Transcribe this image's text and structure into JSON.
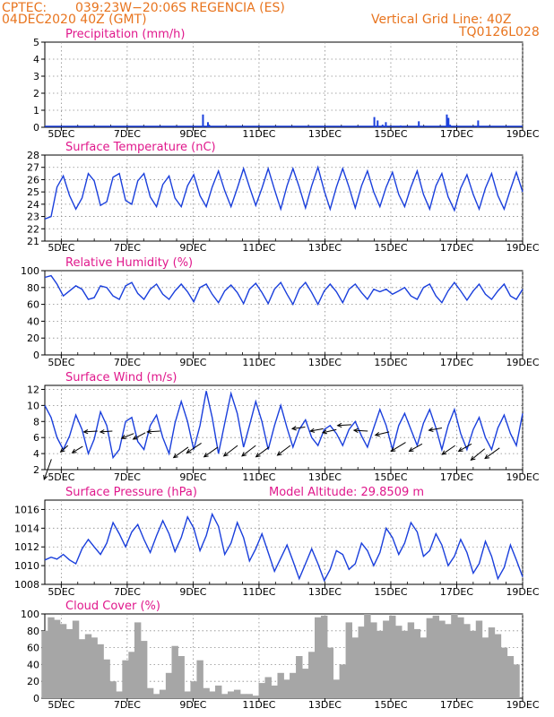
{
  "header": {
    "source": "CPTEC:",
    "location": "039:23W−20:06S   REGENCIA (ES)",
    "datetime": "04DEC2020 40Z (GMT)",
    "grid_note": "Vertical Grid Line: 40Z",
    "code": "TQ0126L028"
  },
  "colors": {
    "header": "#e8741e",
    "title": "#e0188c",
    "line": "#1a3fdc",
    "cloud": "#a6a6a6",
    "arrow": "#000000"
  },
  "x_ticks": [
    "5DEC",
    "7DEC",
    "9DEC",
    "11DEC",
    "13DEC",
    "15DEC",
    "17DEC",
    "19DEC"
  ],
  "chart_data": [
    {
      "type": "bar",
      "title": "Precipitation (mm/h)",
      "ylim": [
        0,
        5
      ],
      "y_ticks": [
        "0",
        "1",
        "2",
        "3",
        "4",
        "5"
      ],
      "x_unit": "days since 4DEC 00Z",
      "points": [
        [
          9.3,
          0.75
        ],
        [
          9.45,
          0.3
        ],
        [
          9.5,
          0.1
        ],
        [
          14.5,
          0.6
        ],
        [
          14.6,
          0.4
        ],
        [
          14.75,
          0.15
        ],
        [
          14.85,
          0.3
        ],
        [
          15.3,
          0.1
        ],
        [
          15.85,
          0.35
        ],
        [
          16.7,
          0.75
        ],
        [
          16.75,
          0.55
        ],
        [
          16.8,
          0.15
        ],
        [
          17.65,
          0.4
        ]
      ]
    },
    {
      "type": "line",
      "title": "Surface Temperature (nC)",
      "ylim": [
        21,
        28
      ],
      "y_ticks": [
        "21",
        "22",
        "23",
        "24",
        "25",
        "26",
        "27",
        "28"
      ],
      "x": [
        4.5,
        4.69,
        4.87,
        5.06,
        5.25,
        5.44,
        5.63,
        5.82,
        6.0,
        6.19,
        6.38,
        6.57,
        6.76,
        6.95,
        7.14,
        7.32,
        7.51,
        7.7,
        7.89,
        8.08,
        8.27,
        8.45,
        8.64,
        8.83,
        9.02,
        9.21,
        9.4,
        9.58,
        9.77,
        9.96,
        10.15,
        10.34,
        10.53,
        10.71,
        10.9,
        11.09,
        11.28,
        11.47,
        11.66,
        11.85,
        12.03,
        12.22,
        12.41,
        12.6,
        12.79,
        12.98,
        13.16,
        13.35,
        13.54,
        13.73,
        13.92,
        14.11,
        14.29,
        14.48,
        14.67,
        14.86,
        15.05,
        15.24,
        15.42,
        15.61,
        15.8,
        15.99,
        16.18,
        16.37,
        16.55,
        16.74,
        16.93,
        17.12,
        17.31,
        17.5,
        17.68,
        17.87,
        18.06,
        18.25,
        18.44,
        18.63,
        18.81,
        19.0
      ],
      "y": [
        22.8,
        23.0,
        25.4,
        26.3,
        24.7,
        23.6,
        24.5,
        26.5,
        25.9,
        23.9,
        24.2,
        26.2,
        26.5,
        24.3,
        24.0,
        25.9,
        26.5,
        24.6,
        23.8,
        25.6,
        26.3,
        24.5,
        23.8,
        25.5,
        26.4,
        24.7,
        23.8,
        25.4,
        26.7,
        25.1,
        23.8,
        25.3,
        26.9,
        25.4,
        23.9,
        25.3,
        26.9,
        25.2,
        23.6,
        25.5,
        26.9,
        25.4,
        23.7,
        25.5,
        27.0,
        25.1,
        23.6,
        25.4,
        26.9,
        25.4,
        23.7,
        25.5,
        26.7,
        25.0,
        23.8,
        25.4,
        26.6,
        24.8,
        23.8,
        25.4,
        26.7,
        24.8,
        23.6,
        25.5,
        26.5,
        24.6,
        23.5,
        25.3,
        26.4,
        24.8,
        23.6,
        25.3,
        26.5,
        24.7,
        23.6,
        25.2,
        26.6,
        25.0
      ]
    },
    {
      "type": "line",
      "title": "Relative Humidity (%)",
      "ylim": [
        0,
        100
      ],
      "y_ticks": [
        "0",
        "20",
        "40",
        "60",
        "80",
        "100"
      ],
      "x": [
        4.5,
        4.69,
        4.87,
        5.06,
        5.25,
        5.44,
        5.63,
        5.82,
        6.0,
        6.19,
        6.38,
        6.57,
        6.76,
        6.95,
        7.14,
        7.32,
        7.51,
        7.7,
        7.89,
        8.08,
        8.27,
        8.45,
        8.64,
        8.83,
        9.02,
        9.21,
        9.4,
        9.58,
        9.77,
        9.96,
        10.15,
        10.34,
        10.53,
        10.71,
        10.9,
        11.09,
        11.28,
        11.47,
        11.66,
        11.85,
        12.03,
        12.22,
        12.41,
        12.6,
        12.79,
        12.98,
        13.16,
        13.35,
        13.54,
        13.73,
        13.92,
        14.11,
        14.29,
        14.48,
        14.67,
        14.86,
        15.05,
        15.24,
        15.42,
        15.61,
        15.8,
        15.99,
        16.18,
        16.37,
        16.55,
        16.74,
        16.93,
        17.12,
        17.31,
        17.5,
        17.68,
        17.87,
        18.06,
        18.25,
        18.44,
        18.63,
        18.81,
        19.0
      ],
      "y": [
        92,
        94,
        84,
        70,
        76,
        82,
        78,
        66,
        68,
        82,
        80,
        70,
        66,
        82,
        86,
        73,
        66,
        78,
        84,
        72,
        66,
        76,
        84,
        75,
        63,
        80,
        84,
        72,
        62,
        76,
        83,
        74,
        61,
        78,
        85,
        74,
        61,
        78,
        86,
        72,
        60,
        78,
        86,
        74,
        60,
        76,
        84,
        75,
        62,
        78,
        84,
        74,
        66,
        78,
        75,
        78,
        72,
        76,
        80,
        70,
        66,
        80,
        84,
        70,
        62,
        76,
        86,
        76,
        65,
        76,
        84,
        72,
        66,
        76,
        84,
        70,
        66,
        78
      ]
    },
    {
      "type": "line",
      "title": "Surface Wind (m/s)",
      "ylim": [
        2,
        12.5
      ],
      "y_ticks": [
        "2",
        "4",
        "6",
        "8",
        "10",
        "12"
      ],
      "x": [
        4.5,
        4.69,
        4.87,
        5.06,
        5.25,
        5.44,
        5.63,
        5.82,
        6.0,
        6.19,
        6.38,
        6.57,
        6.76,
        6.95,
        7.14,
        7.32,
        7.51,
        7.7,
        7.89,
        8.08,
        8.27,
        8.45,
        8.64,
        8.83,
        9.02,
        9.21,
        9.4,
        9.58,
        9.77,
        9.96,
        10.15,
        10.34,
        10.53,
        10.71,
        10.9,
        11.09,
        11.28,
        11.47,
        11.66,
        11.85,
        12.03,
        12.22,
        12.41,
        12.6,
        12.79,
        12.98,
        13.16,
        13.35,
        13.54,
        13.73,
        13.92,
        14.11,
        14.29,
        14.48,
        14.67,
        14.86,
        15.05,
        15.24,
        15.42,
        15.61,
        15.8,
        15.99,
        16.18,
        16.37,
        16.55,
        16.74,
        16.93,
        17.12,
        17.31,
        17.5,
        17.68,
        17.87,
        18.06,
        18.25,
        18.44,
        18.63,
        18.81,
        19.0
      ],
      "y": [
        10.0,
        8.5,
        6.0,
        4.5,
        6.2,
        8.8,
        7.0,
        4.0,
        5.8,
        9.2,
        7.5,
        3.5,
        4.5,
        8.0,
        8.5,
        5.5,
        4.5,
        7.5,
        8.8,
        6.0,
        4.0,
        7.8,
        10.5,
        8.0,
        4.5,
        7.5,
        11.8,
        8.5,
        4.0,
        7.8,
        11.5,
        9.0,
        4.8,
        7.5,
        10.5,
        8.0,
        4.5,
        7.5,
        10.0,
        7.2,
        4.8,
        7.0,
        8.2,
        6.0,
        5.0,
        7.0,
        7.5,
        6.5,
        5.0,
        7.0,
        8.0,
        6.2,
        4.8,
        7.2,
        9.5,
        7.5,
        4.5,
        7.5,
        9.0,
        7.0,
        5.0,
        7.8,
        9.5,
        7.2,
        4.5,
        7.5,
        9.5,
        6.5,
        4.5,
        7.0,
        8.5,
        6.0,
        4.5,
        7.2,
        8.8,
        6.5,
        5.0,
        9.0
      ]
    },
    {
      "type": "line",
      "title": "Surface Pressure (hPa)",
      "annotation": "Model Altitude: 29.8509  m",
      "ylim": [
        1008,
        1017
      ],
      "y_ticks": [
        "1008",
        "1010",
        "1012",
        "1014",
        "1016"
      ],
      "x": [
        4.5,
        4.69,
        4.87,
        5.06,
        5.25,
        5.44,
        5.63,
        5.82,
        6.0,
        6.19,
        6.38,
        6.57,
        6.76,
        6.95,
        7.14,
        7.32,
        7.51,
        7.7,
        7.89,
        8.08,
        8.27,
        8.45,
        8.64,
        8.83,
        9.02,
        9.21,
        9.4,
        9.58,
        9.77,
        9.96,
        10.15,
        10.34,
        10.53,
        10.71,
        10.9,
        11.09,
        11.28,
        11.47,
        11.66,
        11.85,
        12.03,
        12.22,
        12.41,
        12.6,
        12.79,
        12.98,
        13.16,
        13.35,
        13.54,
        13.73,
        13.92,
        14.11,
        14.29,
        14.48,
        14.67,
        14.86,
        15.05,
        15.24,
        15.42,
        15.61,
        15.8,
        15.99,
        16.18,
        16.37,
        16.55,
        16.74,
        16.93,
        17.12,
        17.31,
        17.5,
        17.68,
        17.87,
        18.06,
        18.25,
        18.44,
        18.63,
        18.81,
        19.0
      ],
      "y": [
        1010.6,
        1010.9,
        1010.7,
        1011.2,
        1010.6,
        1010.2,
        1011.8,
        1012.8,
        1012.0,
        1011.2,
        1012.4,
        1014.6,
        1013.4,
        1012.0,
        1013.6,
        1014.4,
        1012.8,
        1011.4,
        1013.2,
        1014.8,
        1013.4,
        1011.5,
        1013.0,
        1015.2,
        1014.0,
        1011.6,
        1013.2,
        1015.5,
        1014.2,
        1011.2,
        1012.4,
        1014.6,
        1013.0,
        1010.5,
        1011.8,
        1013.4,
        1011.4,
        1009.4,
        1010.8,
        1012.2,
        1010.5,
        1008.6,
        1010.2,
        1011.8,
        1010.2,
        1008.4,
        1009.6,
        1011.6,
        1011.2,
        1009.6,
        1010.2,
        1012.4,
        1011.6,
        1010.0,
        1011.4,
        1014.0,
        1013.0,
        1011.2,
        1012.4,
        1014.6,
        1013.6,
        1011.0,
        1011.6,
        1013.4,
        1012.2,
        1010.0,
        1011.0,
        1012.8,
        1011.4,
        1009.2,
        1010.2,
        1012.6,
        1011.0,
        1008.6,
        1009.8,
        1012.2,
        1010.6,
        1008.8
      ]
    },
    {
      "type": "area",
      "title": "Cloud Cover (%)",
      "ylim": [
        0,
        100
      ],
      "y_ticks": [
        "0",
        "20",
        "40",
        "60",
        "80",
        "100"
      ],
      "x": [
        4.5,
        4.69,
        4.87,
        5.06,
        5.25,
        5.44,
        5.63,
        5.82,
        6.0,
        6.19,
        6.38,
        6.57,
        6.76,
        6.95,
        7.14,
        7.32,
        7.51,
        7.7,
        7.89,
        8.08,
        8.27,
        8.45,
        8.64,
        8.83,
        9.02,
        9.21,
        9.4,
        9.58,
        9.77,
        9.96,
        10.15,
        10.34,
        10.53,
        10.71,
        10.9,
        11.09,
        11.28,
        11.47,
        11.66,
        11.85,
        12.03,
        12.22,
        12.41,
        12.6,
        12.79,
        12.98,
        13.16,
        13.35,
        13.54,
        13.73,
        13.92,
        14.11,
        14.29,
        14.48,
        14.67,
        14.86,
        15.05,
        15.24,
        15.42,
        15.61,
        15.8,
        15.99,
        16.18,
        16.37,
        16.55,
        16.74,
        16.93,
        17.12,
        17.31,
        17.5,
        17.68,
        17.87,
        18.06,
        18.25,
        18.44,
        18.63,
        18.81,
        19.0
      ],
      "y": [
        80,
        96,
        93,
        88,
        82,
        92,
        70,
        76,
        72,
        64,
        46,
        20,
        8,
        45,
        55,
        90,
        68,
        12,
        5,
        10,
        30,
        62,
        50,
        8,
        20,
        45,
        12,
        8,
        15,
        5,
        8,
        10,
        5,
        5,
        3,
        18,
        25,
        15,
        30,
        22,
        30,
        50,
        35,
        55,
        96,
        98,
        60,
        22,
        40,
        90,
        72,
        85,
        100,
        90,
        80,
        92,
        98,
        86,
        80,
        90,
        82,
        72,
        95,
        98,
        92,
        88,
        100,
        96,
        88,
        80,
        92,
        72,
        84,
        76,
        60,
        50,
        40,
        0
      ]
    },
    {
      "type": "vector",
      "title": "Surface Wind (m/s) direction",
      "note": "wind arrows overlaid on the wind panel; dx/dy in m/s components",
      "x": [
        4.7,
        5.2,
        5.65,
        6.1,
        6.55,
        7.2,
        7.55,
        8.0,
        8.85,
        9.25,
        9.75,
        10.35,
        10.9,
        11.3,
        11.95,
        12.4,
        12.95,
        13.35,
        13.8,
        14.3,
        14.95,
        15.45,
        15.95,
        16.55,
        16.95,
        17.45,
        17.85,
        18.3
      ],
      "y": [
        3.3,
        5.0,
        4.9,
        6.8,
        6.8,
        6.5,
        6.6,
        6.8,
        4.8,
        5.3,
        4.8,
        5.0,
        5.0,
        4.8,
        5.0,
        7.3,
        7.1,
        7.0,
        7.6,
        6.8,
        6.7,
        5.4,
        5.2,
        7.2,
        5.0,
        5.2,
        4.6,
        4.7
      ],
      "dx": [
        -0.9,
        -0.9,
        -1.3,
        -1.7,
        -1.5,
        -1.5,
        -1.5,
        -1.6,
        -1.8,
        -1.8,
        -1.7,
        -1.7,
        -1.7,
        -1.6,
        -1.6,
        -1.6,
        -1.6,
        -1.7,
        -1.7,
        -1.7,
        -1.7,
        -1.8,
        -1.6,
        -1.6,
        -1.6,
        -1.6,
        -1.7,
        -1.8
      ],
      "dy": [
        -2.5,
        -0.8,
        -0.8,
        -0.1,
        -0.1,
        -0.6,
        -0.8,
        -0.1,
        -1.3,
        -1.2,
        -1.2,
        -1.3,
        -1.3,
        -1.2,
        -1.2,
        -0.2,
        -0.3,
        -0.4,
        -0.1,
        0.1,
        -0.4,
        -1.1,
        -0.9,
        -0.3,
        -1.1,
        -0.9,
        -1.4,
        -1.3
      ]
    }
  ]
}
